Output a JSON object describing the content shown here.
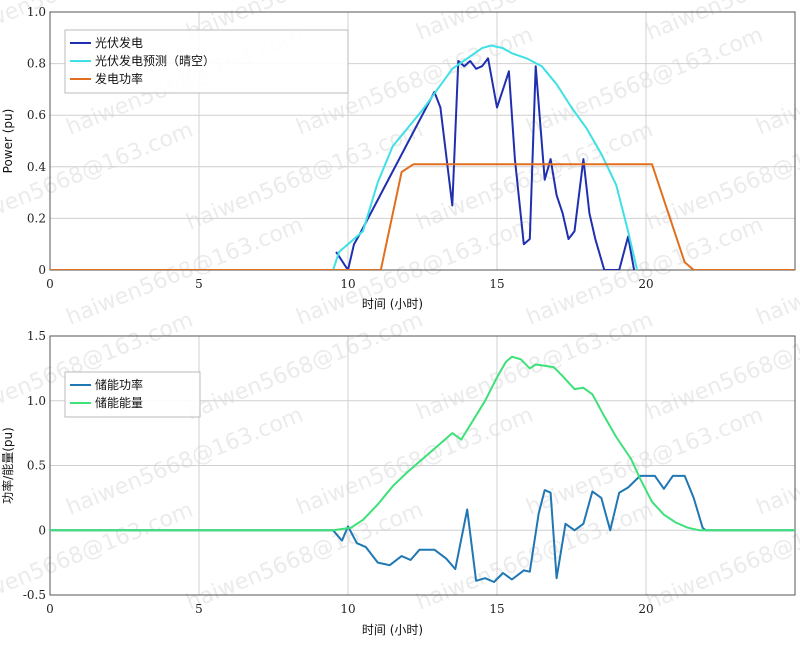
{
  "chart_data": [
    {
      "type": "line",
      "ylabel": "Power (pu)",
      "xlabel": "时间 (小时)",
      "xlim": [
        0,
        25
      ],
      "ylim": [
        0,
        1.0
      ],
      "xticks": [
        0,
        5,
        10,
        15,
        20
      ],
      "xtick_labels": [
        "0",
        "5",
        "10",
        "15",
        "20"
      ],
      "yticks": [
        0,
        0.2,
        0.4,
        0.6,
        0.8,
        1.0
      ],
      "ytick_labels": [
        "0",
        "0.2",
        "0.4",
        "0.6",
        "0.8",
        "1.0"
      ],
      "grid": true,
      "legend": "top-left",
      "series": [
        {
          "name": "光伏发电",
          "color": "#1f2fb0",
          "points": [
            [
              9.6,
              0.07
            ],
            [
              10.0,
              0.0
            ],
            [
              10.2,
              0.1
            ],
            [
              10.4,
              0.14
            ],
            [
              12.9,
              0.69
            ],
            [
              13.1,
              0.63
            ],
            [
              13.5,
              0.25
            ],
            [
              13.7,
              0.81
            ],
            [
              13.9,
              0.79
            ],
            [
              14.1,
              0.81
            ],
            [
              14.3,
              0.78
            ],
            [
              14.5,
              0.79
            ],
            [
              14.7,
              0.82
            ],
            [
              15.0,
              0.63
            ],
            [
              15.2,
              0.7
            ],
            [
              15.4,
              0.77
            ],
            [
              15.6,
              0.43
            ],
            [
              15.9,
              0.1
            ],
            [
              16.1,
              0.12
            ],
            [
              16.3,
              0.79
            ],
            [
              16.6,
              0.35
            ],
            [
              16.8,
              0.43
            ],
            [
              17.0,
              0.29
            ],
            [
              17.2,
              0.22
            ],
            [
              17.4,
              0.12
            ],
            [
              17.6,
              0.15
            ],
            [
              17.9,
              0.43
            ],
            [
              18.1,
              0.22
            ],
            [
              18.3,
              0.12
            ],
            [
              18.6,
              0.0
            ],
            [
              19.1,
              0.0
            ],
            [
              19.4,
              0.13
            ],
            [
              19.6,
              0.0
            ]
          ]
        },
        {
          "name": "光伏发电预测（晴空）",
          "color": "#3fe0e6",
          "points": [
            [
              9.5,
              0.0
            ],
            [
              9.7,
              0.07
            ],
            [
              10.0,
              0.1
            ],
            [
              10.5,
              0.15
            ],
            [
              11.0,
              0.34
            ],
            [
              11.5,
              0.48
            ],
            [
              12.0,
              0.55
            ],
            [
              12.5,
              0.62
            ],
            [
              13.0,
              0.7
            ],
            [
              13.5,
              0.78
            ],
            [
              14.0,
              0.82
            ],
            [
              14.5,
              0.86
            ],
            [
              14.8,
              0.87
            ],
            [
              15.2,
              0.86
            ],
            [
              15.5,
              0.84
            ],
            [
              16.0,
              0.82
            ],
            [
              16.5,
              0.79
            ],
            [
              17.0,
              0.72
            ],
            [
              17.5,
              0.63
            ],
            [
              18.0,
              0.55
            ],
            [
              18.5,
              0.45
            ],
            [
              19.0,
              0.33
            ],
            [
              19.4,
              0.15
            ],
            [
              19.7,
              0.0
            ]
          ]
        },
        {
          "name": "发电功率",
          "color": "#e07020",
          "points": [
            [
              0,
              0.0
            ],
            [
              11.1,
              0.0
            ],
            [
              11.8,
              0.38
            ],
            [
              12.2,
              0.41
            ],
            [
              20.2,
              0.41
            ],
            [
              21.3,
              0.03
            ],
            [
              21.6,
              0.0
            ],
            [
              25,
              0.0
            ]
          ]
        }
      ]
    },
    {
      "type": "line",
      "ylabel": "功率/能量(pu)",
      "xlabel": "时间 (小时)",
      "xlim": [
        0,
        25
      ],
      "ylim": [
        -0.5,
        1.5
      ],
      "xticks": [
        0,
        5,
        10,
        15,
        20
      ],
      "xtick_labels": [
        "0",
        "5",
        "10",
        "15",
        "20"
      ],
      "yticks": [
        -0.5,
        0,
        0.5,
        1.0,
        1.5
      ],
      "ytick_labels": [
        "-0.5",
        "0",
        "0.5",
        "1.0",
        "1.5"
      ],
      "grid": true,
      "legend": "top-left",
      "series": [
        {
          "name": "储能功率",
          "color": "#1f77b4",
          "points": [
            [
              0,
              0.0
            ],
            [
              9.5,
              0.0
            ],
            [
              9.8,
              -0.08
            ],
            [
              10.0,
              0.03
            ],
            [
              10.3,
              -0.1
            ],
            [
              10.6,
              -0.13
            ],
            [
              11.0,
              -0.25
            ],
            [
              11.4,
              -0.27
            ],
            [
              11.8,
              -0.2
            ],
            [
              12.1,
              -0.23
            ],
            [
              12.4,
              -0.15
            ],
            [
              12.9,
              -0.15
            ],
            [
              13.3,
              -0.22
            ],
            [
              13.6,
              -0.3
            ],
            [
              14.0,
              0.16
            ],
            [
              14.3,
              -0.39
            ],
            [
              14.6,
              -0.37
            ],
            [
              14.9,
              -0.4
            ],
            [
              15.2,
              -0.33
            ],
            [
              15.5,
              -0.38
            ],
            [
              15.9,
              -0.31
            ],
            [
              16.1,
              -0.32
            ],
            [
              16.4,
              0.13
            ],
            [
              16.6,
              0.31
            ],
            [
              16.8,
              0.29
            ],
            [
              17.0,
              -0.37
            ],
            [
              17.3,
              0.05
            ],
            [
              17.6,
              0.0
            ],
            [
              17.9,
              0.05
            ],
            [
              18.2,
              0.3
            ],
            [
              18.5,
              0.25
            ],
            [
              18.8,
              0.0
            ],
            [
              19.1,
              0.29
            ],
            [
              19.4,
              0.33
            ],
            [
              19.8,
              0.42
            ],
            [
              20.3,
              0.42
            ],
            [
              20.6,
              0.32
            ],
            [
              20.9,
              0.42
            ],
            [
              21.3,
              0.42
            ],
            [
              21.6,
              0.25
            ],
            [
              21.9,
              0.02
            ],
            [
              22.0,
              0.0
            ],
            [
              25,
              0.0
            ]
          ]
        },
        {
          "name": "储能能量",
          "color": "#3ee07a",
          "points": [
            [
              0,
              0.0
            ],
            [
              9.5,
              0.0
            ],
            [
              10.1,
              0.02
            ],
            [
              10.5,
              0.08
            ],
            [
              11.0,
              0.2
            ],
            [
              11.5,
              0.34
            ],
            [
              12.0,
              0.45
            ],
            [
              12.5,
              0.55
            ],
            [
              13.0,
              0.65
            ],
            [
              13.5,
              0.75
            ],
            [
              13.8,
              0.7
            ],
            [
              14.2,
              0.85
            ],
            [
              14.6,
              1.0
            ],
            [
              15.0,
              1.18
            ],
            [
              15.3,
              1.3
            ],
            [
              15.5,
              1.34
            ],
            [
              15.8,
              1.32
            ],
            [
              16.1,
              1.25
            ],
            [
              16.3,
              1.28
            ],
            [
              16.6,
              1.27
            ],
            [
              16.9,
              1.26
            ],
            [
              17.2,
              1.19
            ],
            [
              17.6,
              1.09
            ],
            [
              17.9,
              1.1
            ],
            [
              18.2,
              1.05
            ],
            [
              18.6,
              0.88
            ],
            [
              19.0,
              0.72
            ],
            [
              19.5,
              0.55
            ],
            [
              19.8,
              0.4
            ],
            [
              20.2,
              0.22
            ],
            [
              20.6,
              0.12
            ],
            [
              21.0,
              0.06
            ],
            [
              21.4,
              0.02
            ],
            [
              21.8,
              0.0
            ],
            [
              25,
              0.0
            ]
          ]
        }
      ]
    }
  ],
  "watermark": "haiwen5668@163.com"
}
